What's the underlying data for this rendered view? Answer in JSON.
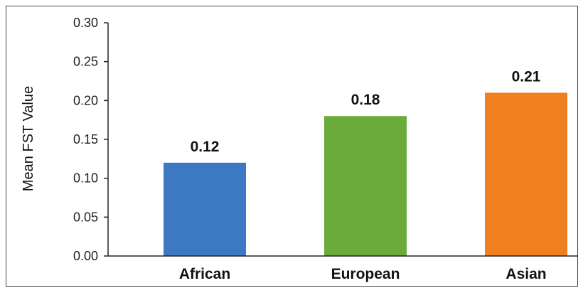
{
  "chart_data": {
    "type": "bar",
    "title": "",
    "xlabel": "",
    "ylabel": "Mean FST Value",
    "ylim": [
      0,
      0.3
    ],
    "yticks": [
      "0.00",
      "0.05",
      "0.10",
      "0.15",
      "0.20",
      "0.25",
      "0.30"
    ],
    "categories": [
      "African",
      "European",
      "Asian"
    ],
    "values": [
      0.12,
      0.18,
      0.21
    ],
    "value_labels": [
      "0.12",
      "0.18",
      "0.21"
    ],
    "colors": [
      "#3d79c2",
      "#6aab3a",
      "#f07f1e"
    ],
    "grid": false,
    "legend": "none"
  }
}
